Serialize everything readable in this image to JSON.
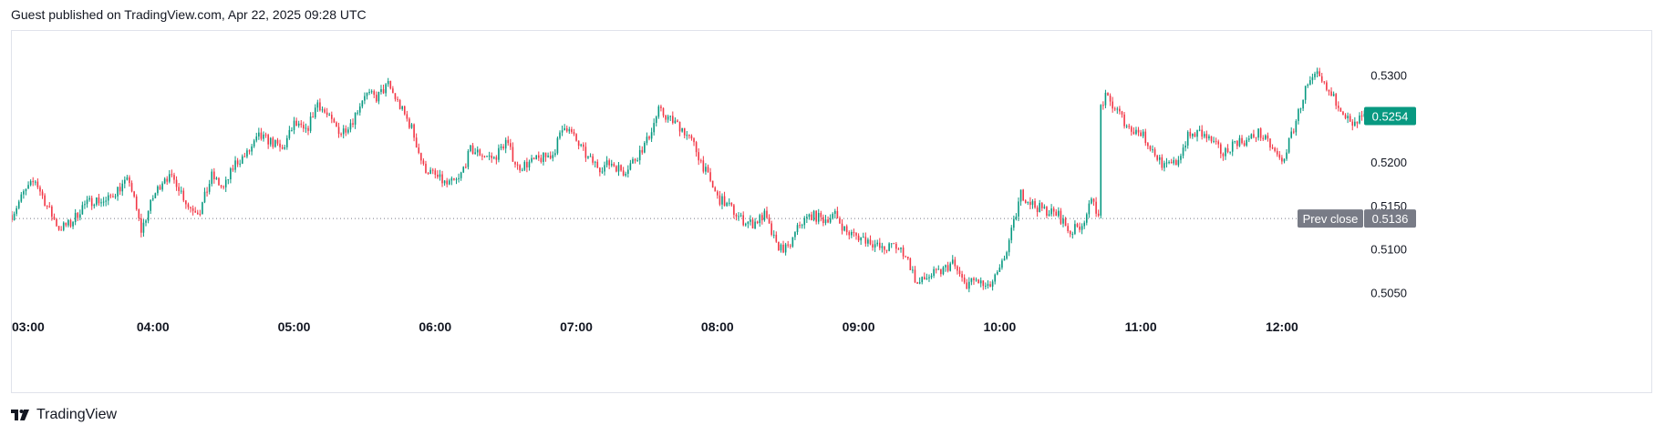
{
  "header": {
    "text": "Guest published on TradingView.com, Apr 22, 2025 09:28 UTC"
  },
  "footer": {
    "brand": "TradingView"
  },
  "colors": {
    "up": "#089981",
    "down": "#f23645",
    "prev_close": "#787b86",
    "price_tag": "#089981"
  },
  "chart_data": {
    "type": "candlestick",
    "interval": "1 minute",
    "x_ticks": [
      "03:00",
      "04:00",
      "05:00",
      "06:00",
      "07:00",
      "08:00",
      "09:00",
      "10:00",
      "11:00",
      "12:00"
    ],
    "y_ticks": [
      "0.5300",
      "0.5250",
      "0.5200",
      "0.5150",
      "0.5100",
      "0.5050"
    ],
    "y_tick_values": [
      0.53,
      0.525,
      0.52,
      0.515,
      0.51,
      0.505
    ],
    "ylim": [
      0.5022,
      0.5352
    ],
    "xlim_hours": [
      3.0,
      12.55
    ],
    "grid": false,
    "last_price": {
      "label": "0.5254",
      "value": 0.5254
    },
    "prev_close": {
      "label": "Prev close",
      "value_label": "0.5136",
      "value": 0.5136
    },
    "price_path": [
      [
        "03:00",
        0.514
      ],
      [
        "03:05",
        0.5165
      ],
      [
        "03:10",
        0.518
      ],
      [
        "03:15",
        0.515
      ],
      [
        "03:20",
        0.5125
      ],
      [
        "03:25",
        0.513
      ],
      [
        "03:30",
        0.515
      ],
      [
        "03:35",
        0.5158
      ],
      [
        "03:40",
        0.5155
      ],
      [
        "03:45",
        0.517
      ],
      [
        "03:50",
        0.518
      ],
      [
        "03:55",
        0.5122
      ],
      [
        "04:00",
        0.516
      ],
      [
        "04:05",
        0.5185
      ],
      [
        "04:10",
        0.5178
      ],
      [
        "04:15",
        0.515
      ],
      [
        "04:20",
        0.5145
      ],
      [
        "04:25",
        0.5185
      ],
      [
        "04:30",
        0.517
      ],
      [
        "04:35",
        0.52
      ],
      [
        "04:40",
        0.521
      ],
      [
        "04:45",
        0.523
      ],
      [
        "04:50",
        0.5225
      ],
      [
        "04:55",
        0.5215
      ],
      [
        "05:00",
        0.5245
      ],
      [
        "05:05",
        0.5235
      ],
      [
        "05:10",
        0.527
      ],
      [
        "05:15",
        0.525
      ],
      [
        "05:20",
        0.5235
      ],
      [
        "05:25",
        0.525
      ],
      [
        "05:30",
        0.528
      ],
      [
        "05:35",
        0.5275
      ],
      [
        "05:40",
        0.529
      ],
      [
        "05:45",
        0.5265
      ],
      [
        "05:50",
        0.524
      ],
      [
        "05:55",
        0.5195
      ],
      [
        "06:00",
        0.5185
      ],
      [
        "06:05",
        0.5175
      ],
      [
        "06:10",
        0.518
      ],
      [
        "06:15",
        0.5215
      ],
      [
        "06:20",
        0.521
      ],
      [
        "06:25",
        0.5205
      ],
      [
        "06:30",
        0.5225
      ],
      [
        "06:35",
        0.5195
      ],
      [
        "06:40",
        0.52
      ],
      [
        "06:45",
        0.5205
      ],
      [
        "06:50",
        0.521
      ],
      [
        "06:55",
        0.5245
      ],
      [
        "07:00",
        0.5225
      ],
      [
        "07:05",
        0.5205
      ],
      [
        "07:10",
        0.5195
      ],
      [
        "07:15",
        0.52
      ],
      [
        "07:20",
        0.519
      ],
      [
        "07:25",
        0.5205
      ],
      [
        "07:30",
        0.5225
      ],
      [
        "07:35",
        0.526
      ],
      [
        "07:40",
        0.525
      ],
      [
        "07:45",
        0.524
      ],
      [
        "07:50",
        0.522
      ],
      [
        "07:55",
        0.519
      ],
      [
        "08:00",
        0.516
      ],
      [
        "08:05",
        0.515
      ],
      [
        "08:10",
        0.5135
      ],
      [
        "08:15",
        0.513
      ],
      [
        "08:20",
        0.514
      ],
      [
        "08:25",
        0.5105
      ],
      [
        "08:30",
        0.51
      ],
      [
        "08:35",
        0.513
      ],
      [
        "08:40",
        0.514
      ],
      [
        "08:45",
        0.5135
      ],
      [
        "08:50",
        0.514
      ],
      [
        "08:55",
        0.512
      ],
      [
        "09:00",
        0.5115
      ],
      [
        "09:05",
        0.511
      ],
      [
        "09:10",
        0.51
      ],
      [
        "09:15",
        0.5105
      ],
      [
        "09:20",
        0.5095
      ],
      [
        "09:25",
        0.506
      ],
      [
        "09:30",
        0.507
      ],
      [
        "09:35",
        0.5075
      ],
      [
        "09:40",
        0.5085
      ],
      [
        "09:45",
        0.506
      ],
      [
        "09:50",
        0.5065
      ],
      [
        "09:55",
        0.5055
      ],
      [
        "10:00",
        0.5075
      ],
      [
        "10:03",
        0.51
      ],
      [
        "10:06",
        0.513
      ],
      [
        "10:09",
        0.5165
      ],
      [
        "10:15",
        0.515
      ],
      [
        "10:20",
        0.5145
      ],
      [
        "10:25",
        0.514
      ],
      [
        "10:30",
        0.512
      ],
      [
        "10:35",
        0.513
      ],
      [
        "10:40",
        0.516
      ],
      [
        "10:42",
        0.5135
      ],
      [
        "10:43",
        0.5265
      ],
      [
        "10:45",
        0.5275
      ],
      [
        "10:50",
        0.526
      ],
      [
        "10:55",
        0.524
      ],
      [
        "11:00",
        0.5235
      ],
      [
        "11:05",
        0.5215
      ],
      [
        "11:10",
        0.5195
      ],
      [
        "11:15",
        0.52
      ],
      [
        "11:20",
        0.523
      ],
      [
        "11:25",
        0.5235
      ],
      [
        "11:30",
        0.5225
      ],
      [
        "11:35",
        0.521
      ],
      [
        "11:40",
        0.5225
      ],
      [
        "11:45",
        0.5225
      ],
      [
        "11:50",
        0.5235
      ],
      [
        "11:55",
        0.522
      ],
      [
        "12:00",
        0.52
      ],
      [
        "12:05",
        0.524
      ],
      [
        "12:10",
        0.5285
      ],
      [
        "12:15",
        0.53
      ],
      [
        "12:20",
        0.528
      ],
      [
        "12:25",
        0.5265
      ],
      [
        "12:30",
        0.524
      ],
      [
        "12:33",
        0.525
      ],
      [
        "12:36",
        0.5254
      ]
    ]
  }
}
